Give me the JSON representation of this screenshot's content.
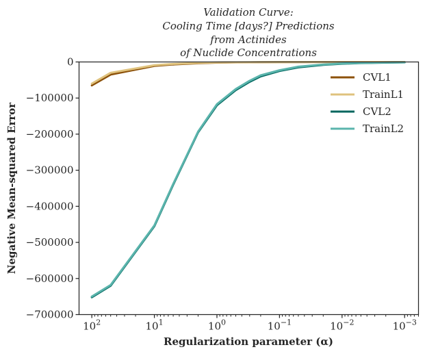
{
  "chart_data": {
    "type": "line",
    "title_lines": [
      "Validation Curve:",
      "Cooling Time [days?] Predictions",
      "from Actinides",
      "of Nuclide Concentrations"
    ],
    "xlabel": "Regularization parameter (α)",
    "ylabel": "Negative Mean-squared Error",
    "x_scale": "log",
    "x_reversed": true,
    "xlim": [
      160,
      0.0006
    ],
    "ylim": [
      -700000,
      0
    ],
    "x_ticks": [
      {
        "value": 100,
        "base": "10",
        "exp": "2"
      },
      {
        "value": 10,
        "base": "10",
        "exp": "1"
      },
      {
        "value": 1,
        "base": "10",
        "exp": "0"
      },
      {
        "value": 0.1,
        "base": "10",
        "exp": "−1"
      },
      {
        "value": 0.01,
        "base": "10",
        "exp": "−2"
      },
      {
        "value": 0.001,
        "base": "10",
        "exp": "−3"
      }
    ],
    "y_ticks": [
      {
        "value": 0,
        "label": "0"
      },
      {
        "value": -100000,
        "label": "−100000"
      },
      {
        "value": -200000,
        "label": "−200000"
      },
      {
        "value": -300000,
        "label": "−300000"
      },
      {
        "value": -400000,
        "label": "−400000"
      },
      {
        "value": -500000,
        "label": "−500000"
      },
      {
        "value": -600000,
        "label": "−600000"
      },
      {
        "value": -700000,
        "label": "−700000"
      }
    ],
    "legend_position": "top-right",
    "grid": false,
    "x": [
      100,
      50,
      10,
      5,
      2,
      1,
      0.5,
      0.3,
      0.2,
      0.1,
      0.05,
      0.02,
      0.01,
      0.005,
      0.002,
      0.001
    ],
    "series": [
      {
        "name": "CVL1",
        "color": "#8c510a",
        "values": [
          -65000,
          -35000,
          -11000,
          -7000,
          -3500,
          -2000,
          -1200,
          -900,
          -700,
          -500,
          -400,
          -300,
          -250,
          -200,
          -180,
          -160
        ]
      },
      {
        "name": "TrainL1",
        "color": "#dfc27d",
        "values": [
          -60000,
          -30000,
          -9000,
          -5500,
          -2500,
          -1500,
          -900,
          -700,
          -550,
          -400,
          -320,
          -250,
          -200,
          -170,
          -150,
          -140
        ]
      },
      {
        "name": "CVL2",
        "color": "#01665e",
        "values": [
          -652000,
          -620000,
          -455000,
          -340000,
          -195000,
          -120000,
          -78000,
          -55000,
          -40000,
          -25000,
          -15000,
          -8000,
          -5000,
          -3000,
          -1800,
          -1200
        ]
      },
      {
        "name": "TrainL2",
        "color": "#5ab4ac",
        "values": [
          -650000,
          -618000,
          -453000,
          -338000,
          -193000,
          -117000,
          -75000,
          -52000,
          -37000,
          -23000,
          -13000,
          -7000,
          -4200,
          -2500,
          -1500,
          -1000
        ]
      }
    ]
  }
}
